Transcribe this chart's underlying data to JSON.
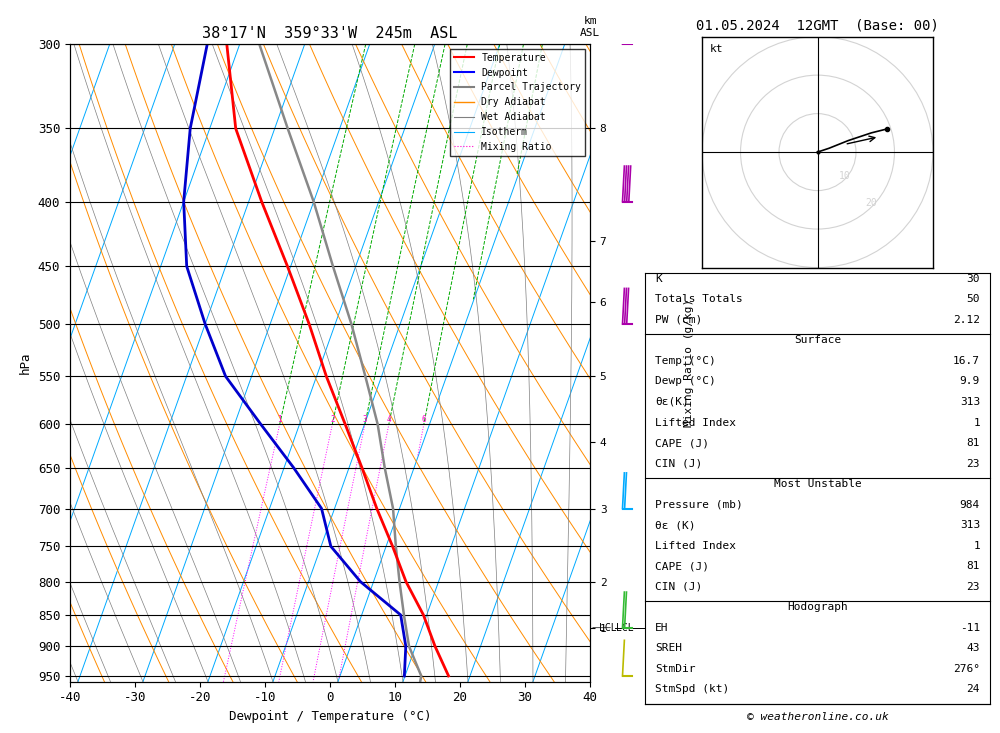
{
  "title_left": "38°17'N  359°33'W  245m  ASL",
  "title_right": "01.05.2024  12GMT  (Base: 00)",
  "copyright": "© weatheronline.co.uk",
  "xlabel": "Dewpoint / Temperature (°C)",
  "ylabel_left": "hPa",
  "temp_data": {
    "pressure": [
      950,
      900,
      850,
      800,
      750,
      700,
      650,
      600,
      550,
      500,
      450,
      400,
      350,
      300
    ],
    "temperature": [
      16.7,
      13.0,
      9.5,
      5.0,
      1.0,
      -3.5,
      -8.0,
      -13.0,
      -18.5,
      -24.0,
      -30.5,
      -38.0,
      -46.0,
      -52.0
    ]
  },
  "dewp_data": {
    "pressure": [
      950,
      900,
      850,
      800,
      750,
      700,
      650,
      600,
      550,
      500,
      450,
      400,
      350,
      300
    ],
    "dewpoint": [
      9.9,
      8.5,
      6.0,
      -2.0,
      -8.5,
      -12.0,
      -18.5,
      -26.0,
      -34.0,
      -40.0,
      -46.0,
      -50.0,
      -53.0,
      -55.0
    ]
  },
  "parcel_data": {
    "pressure": [
      984,
      950,
      900,
      850,
      800,
      750,
      700,
      650,
      600,
      550,
      500,
      450,
      400,
      350,
      300
    ],
    "temperature": [
      13.0,
      12.5,
      9.0,
      6.5,
      4.0,
      1.5,
      -1.0,
      -4.5,
      -8.0,
      -12.5,
      -17.5,
      -23.5,
      -30.0,
      -38.0,
      -47.0
    ]
  },
  "x_range": [
    -40,
    40
  ],
  "p_min": 300,
  "p_max": 960,
  "skew_factor": 30,
  "temp_color": "#FF0000",
  "dewp_color": "#0000CC",
  "parcel_color": "#888888",
  "dry_adiabat_color": "#FF8C00",
  "wet_adiabat_color": "#888888",
  "isotherm_color": "#00AAFF",
  "mixing_ratio_upper_color": "#00AA00",
  "mixing_ratio_lower_color": "#FF00FF",
  "pressure_levels": [
    300,
    350,
    400,
    450,
    500,
    550,
    600,
    650,
    700,
    750,
    800,
    850,
    900,
    950
  ],
  "km_labels": {
    "8": 350,
    "7": 430,
    "6": 480,
    "5": 550,
    "4": 620,
    "3": 700,
    "2": 800,
    "1": 870
  },
  "lcl_pressure": 870,
  "mixing_ratio_values": [
    1,
    2,
    3,
    4,
    6,
    8,
    10,
    15,
    20,
    25
  ],
  "stats": {
    "K": 30,
    "Totals_Totals": 50,
    "PW_cm": "2.12",
    "Surface_Temp": "16.7",
    "Surface_Dewp": "9.9",
    "Surface_ThetaE": 313,
    "Surface_LI": 1,
    "Surface_CAPE": 81,
    "Surface_CIN": 23,
    "MU_Pressure": 984,
    "MU_ThetaE": 313,
    "MU_LI": 1,
    "MU_CAPE": 81,
    "MU_CIN": 23,
    "EH": "-11",
    "SREH": 43,
    "StmDir": "276°",
    "StmSpd": 24
  },
  "wind_barbs": [
    {
      "pressure": 300,
      "color": "#AA00AA",
      "ticks": 4
    },
    {
      "pressure": 400,
      "color": "#AA00AA",
      "ticks": 4
    },
    {
      "pressure": 500,
      "color": "#AA00AA",
      "ticks": 3
    },
    {
      "pressure": 700,
      "color": "#00AAFF",
      "ticks": 2
    },
    {
      "pressure": 870,
      "color": "#33BB33",
      "ticks": 2
    },
    {
      "pressure": 950,
      "color": "#BBBB00",
      "ticks": 1
    }
  ]
}
